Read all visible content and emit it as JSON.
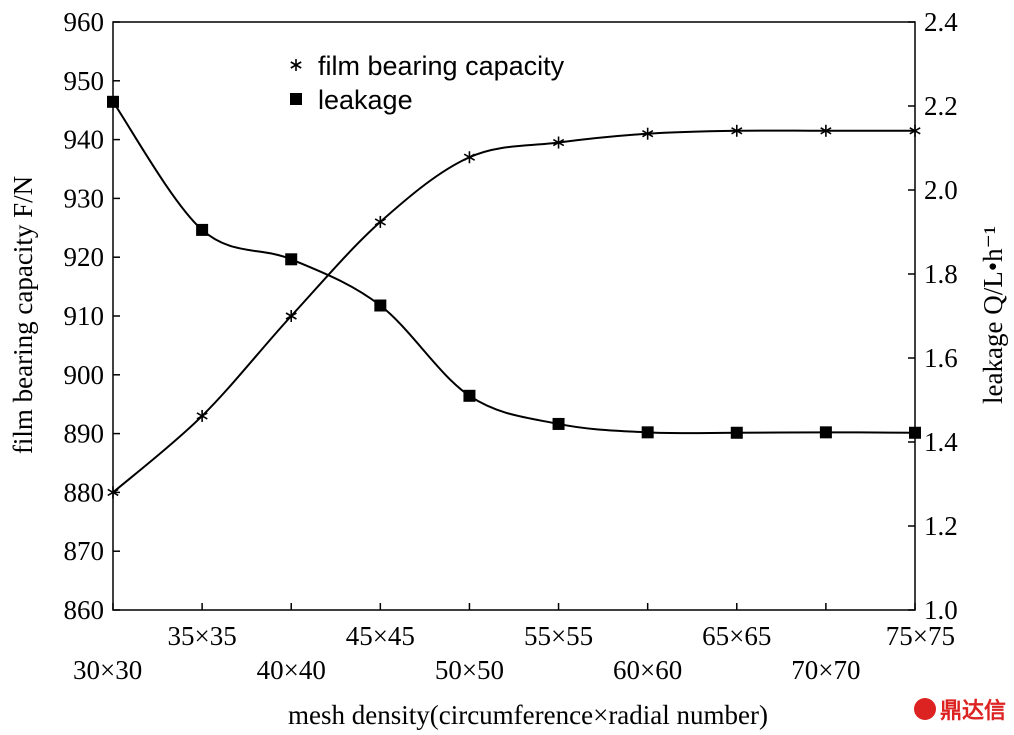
{
  "chart_data": {
    "type": "line",
    "title": "",
    "categories": [
      "30×30",
      "35×35",
      "40×40",
      "45×45",
      "50×50",
      "55×55",
      "60×60",
      "65×65",
      "70×70",
      "75×75"
    ],
    "xlabel": "mesh density(circumference×radial number)",
    "ylabel_left": "film bearing capacity F/N",
    "ylabel_right": "leakage Q/L•h⁻¹",
    "ylim_left": [
      860,
      960
    ],
    "ylim_right": [
      1.0,
      2.4
    ],
    "yticks_left": [
      "860",
      "870",
      "880",
      "890",
      "900",
      "910",
      "920",
      "930",
      "940",
      "950",
      "960"
    ],
    "yticks_right": [
      "1.0",
      "1.2",
      "1.4",
      "1.6",
      "1.8",
      "2.0",
      "2.2",
      "2.4"
    ],
    "grid": false,
    "legend_position": "top-center",
    "series": [
      {
        "name": "film bearing capacity",
        "axis": "left",
        "marker": "asterisk",
        "values": [
          880,
          893,
          910,
          926,
          937,
          939.5,
          941,
          941.5,
          941.5,
          941.5
        ]
      },
      {
        "name": "leakage",
        "axis": "right",
        "marker": "square",
        "values": [
          2.21,
          1.905,
          1.835,
          1.725,
          1.51,
          1.443,
          1.423,
          1.422,
          1.423,
          1.422
        ]
      }
    ]
  },
  "watermark": {
    "text": "鼎达信"
  }
}
